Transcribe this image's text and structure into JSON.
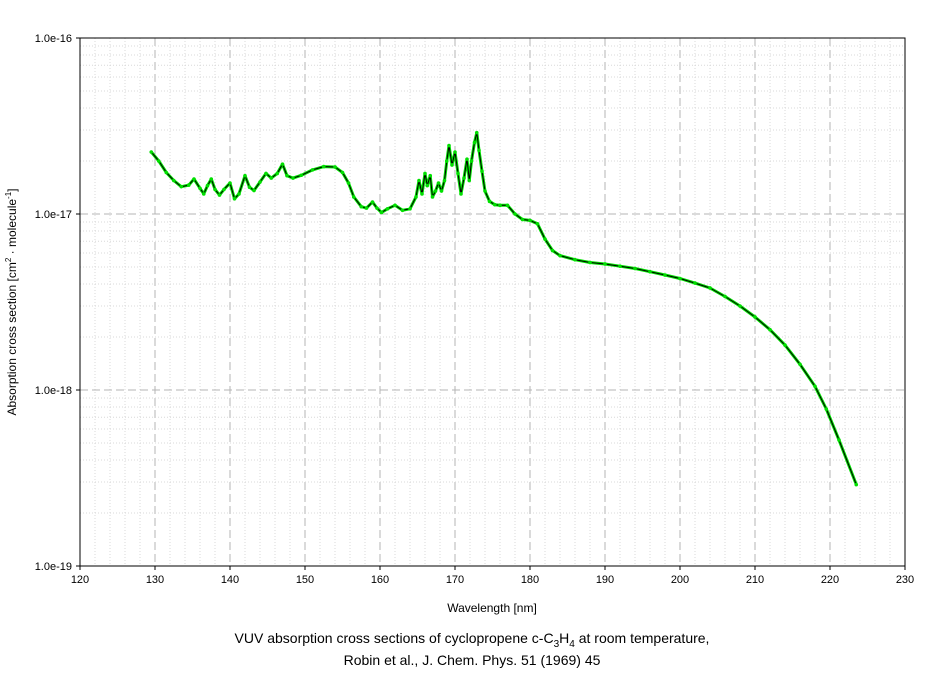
{
  "chart_data": {
    "type": "line",
    "xlabel": "Wavelength [nm]",
    "ylabel": "Absorption cross section [cm2 · molecule-1]",
    "ylabel_parts": {
      "pre": "Absorption cross section [cm",
      "sup1": "2",
      "mid": " · molecule",
      "sup2": "-1",
      "post": "]"
    },
    "xlim": [
      120,
      230
    ],
    "ylim": [
      1e-19,
      1e-16
    ],
    "yscale": "log",
    "grid": true,
    "x_ticks": [
      "120",
      "130",
      "140",
      "150",
      "160",
      "170",
      "180",
      "190",
      "200",
      "210",
      "220",
      "230"
    ],
    "y_ticks": [
      "1.0e-19",
      "1.0e-18",
      "1.0e-17",
      "1.0e-16"
    ],
    "line_color": "#000000",
    "marker_color": "#00e000",
    "series": [
      {
        "x": [
          129.5,
          130.5,
          131.5,
          132.5,
          133.5,
          134.5,
          135.2,
          136.0,
          136.5,
          137.0,
          137.5,
          138.0,
          138.6,
          139.2,
          140.0,
          140.6,
          141.2,
          142.0,
          142.6,
          143.2,
          144.0,
          144.8,
          145.5,
          146.3,
          147.0,
          147.6,
          148.4,
          149.5,
          151.0,
          152.5,
          154.0,
          155.0,
          155.8,
          156.5,
          157.5,
          158.2,
          159.0,
          159.6,
          160.2,
          161.0,
          162.0,
          163.0,
          164.0,
          164.8,
          165.2,
          165.6,
          166.0,
          166.3,
          166.7,
          167.0,
          167.4,
          167.8,
          168.2,
          168.6,
          168.9,
          169.2,
          169.6,
          170.0,
          170.4,
          170.8,
          171.2,
          171.6,
          171.9,
          172.2,
          172.6,
          172.9,
          173.2,
          173.6,
          174.0,
          174.6,
          175.3,
          176.0,
          177.0,
          178.0,
          179.0,
          180.0,
          181.0,
          182.0,
          183.0,
          184.0,
          186.0,
          188.0,
          190.0,
          192.0,
          194.0,
          196.0,
          198.0,
          200.0,
          202.0,
          204.0,
          206.0,
          208.0,
          210.0,
          212.0,
          214.0,
          216.0,
          218.0,
          219.5,
          221.2,
          223.5
        ],
        "y": [
          2.25e-17,
          2e-17,
          1.72e-17,
          1.55e-17,
          1.43e-17,
          1.46e-17,
          1.58e-17,
          1.4e-17,
          1.3e-17,
          1.45e-17,
          1.58e-17,
          1.38e-17,
          1.28e-17,
          1.38e-17,
          1.5e-17,
          1.22e-17,
          1.3e-17,
          1.65e-17,
          1.42e-17,
          1.36e-17,
          1.52e-17,
          1.7e-17,
          1.6e-17,
          1.7e-17,
          1.92e-17,
          1.65e-17,
          1.6e-17,
          1.66e-17,
          1.78e-17,
          1.86e-17,
          1.85e-17,
          1.72e-17,
          1.5e-17,
          1.25e-17,
          1.1e-17,
          1.08e-17,
          1.17e-17,
          1.08e-17,
          1.02e-17,
          1.07e-17,
          1.12e-17,
          1.05e-17,
          1.07e-17,
          1.25e-17,
          1.55e-17,
          1.3e-17,
          1.7e-17,
          1.45e-17,
          1.65e-17,
          1.25e-17,
          1.35e-17,
          1.5e-17,
          1.35e-17,
          1.55e-17,
          2e-17,
          2.45e-17,
          1.9e-17,
          2.25e-17,
          1.7e-17,
          1.3e-17,
          1.6e-17,
          2.05e-17,
          1.55e-17,
          2e-17,
          2.55e-17,
          2.9e-17,
          2.3e-17,
          1.75e-17,
          1.35e-17,
          1.18e-17,
          1.13e-17,
          1.12e-17,
          1.12e-17,
          1e-17,
          9.3e-18,
          9.2e-18,
          8.8e-18,
          7.2e-18,
          6.2e-18,
          5.8e-18,
          5.5e-18,
          5.3e-18,
          5.2e-18,
          5.05e-18,
          4.9e-18,
          4.7e-18,
          4.5e-18,
          4.3e-18,
          4.05e-18,
          3.8e-18,
          3.4e-18,
          3e-18,
          2.6e-18,
          2.2e-18,
          1.8e-18,
          1.4e-18,
          1.05e-18,
          7.8e-19,
          5.2e-19,
          2.9e-19
        ]
      }
    ]
  },
  "caption": {
    "line1_pre": "VUV absorption cross sections of cyclopropene c-C",
    "line1_sub1": "3",
    "line1_mid": "H",
    "line1_sub2": "4",
    "line1_post": " at room temperature,",
    "line2": "Robin et al., J. Chem. Phys. 51 (1969) 45"
  }
}
